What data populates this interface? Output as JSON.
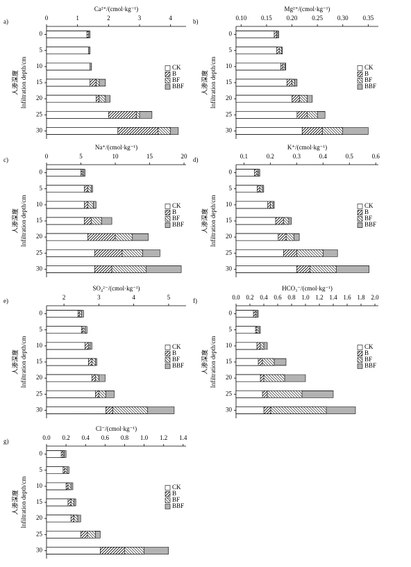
{
  "chart_data": [
    {
      "type": "bar",
      "orientation": "horizontal",
      "label": "a)",
      "title": "Ca²⁺/(cmol·kg⁻¹)",
      "ylabel": [
        "人渗深度",
        "Infiltration depth/cm"
      ],
      "categories": [
        "0",
        "5",
        "10",
        "15",
        "20",
        "25",
        "30"
      ],
      "xlim": [
        0,
        4.5
      ],
      "xticks": [
        0,
        1,
        2,
        3,
        4
      ],
      "series": [
        {
          "name": "CK",
          "pattern": "none",
          "values": [
            1.3,
            1.35,
            1.4,
            1.4,
            1.6,
            2.0,
            2.3
          ]
        },
        {
          "name": "B",
          "pattern": "diagonal",
          "values": [
            1.35,
            1.4,
            1.45,
            1.6,
            1.7,
            2.9,
            3.6
          ]
        },
        {
          "name": "BF",
          "pattern": "back-diagonal",
          "values": [
            1.4,
            1.4,
            1.45,
            1.7,
            1.9,
            3.0,
            4.0
          ]
        },
        {
          "name": "BBF",
          "pattern": "horizontal",
          "values": [
            1.4,
            1.4,
            1.45,
            1.9,
            2.05,
            3.4,
            4.25
          ]
        }
      ]
    },
    {
      "type": "bar",
      "orientation": "horizontal",
      "label": "b)",
      "title": "Mg²⁺/(cmol·kg⁻¹)",
      "ylabel": [
        "人渗深度",
        "Infiltration depth/cm"
      ],
      "categories": [
        "0",
        "5",
        "10",
        "15",
        "20",
        "25",
        "30"
      ],
      "xlim": [
        0.09,
        0.37
      ],
      "xticks": [
        {
          "value": 0.1,
          "label": "0.10"
        },
        0.15,
        {
          "value": 0.2,
          "label": "0.20"
        },
        0.25,
        {
          "value": 0.3,
          "label": "0.30"
        },
        0.35
      ],
      "series": [
        {
          "name": "CK",
          "pattern": "none",
          "values": [
            0.165,
            0.17,
            0.178,
            0.19,
            0.2,
            0.21,
            0.22
          ]
        },
        {
          "name": "B",
          "pattern": "diagonal",
          "values": [
            0.17,
            0.175,
            0.182,
            0.2,
            0.215,
            0.23,
            0.26
          ]
        },
        {
          "name": "BF",
          "pattern": "back-diagonal",
          "values": [
            0.172,
            0.18,
            0.186,
            0.205,
            0.23,
            0.25,
            0.3
          ]
        },
        {
          "name": "BBF",
          "pattern": "horizontal",
          "values": [
            0.174,
            0.181,
            0.188,
            0.21,
            0.24,
            0.265,
            0.35
          ]
        }
      ]
    },
    {
      "type": "bar",
      "orientation": "horizontal",
      "label": "c)",
      "title": "Na⁺/(cmol·kg⁻¹)",
      "ylabel": [
        "人渗深度",
        "Infiltration depth/cm"
      ],
      "categories": [
        "0",
        "5",
        "10",
        "15",
        "20",
        "25",
        "30"
      ],
      "xlim": [
        0,
        20.3
      ],
      "xticks": [
        0,
        5,
        10,
        15,
        20
      ],
      "series": [
        {
          "name": "CK",
          "pattern": "none",
          "values": [
            5,
            5.5,
            5.5,
            5.5,
            6,
            7,
            7
          ]
        },
        {
          "name": "B",
          "pattern": "diagonal",
          "values": [
            5.2,
            6,
            6,
            6.5,
            10,
            11,
            9.5
          ]
        },
        {
          "name": "BF",
          "pattern": "back-diagonal",
          "values": [
            5.4,
            6.5,
            6.8,
            8,
            12.5,
            14,
            14.5
          ]
        },
        {
          "name": "BBF",
          "pattern": "horizontal",
          "values": [
            5.6,
            6.7,
            7.2,
            9.5,
            14.8,
            16.5,
            19.6
          ]
        }
      ]
    },
    {
      "type": "bar",
      "orientation": "horizontal",
      "label": "d)",
      "title": "K⁺/(cmol·kg⁻¹)",
      "ylabel": [
        "人渗深度",
        "Infiltration depth/cm"
      ],
      "categories": [
        "0",
        "5",
        "10",
        "15",
        "20",
        "25",
        "30"
      ],
      "xlim": [
        0.07,
        0.61
      ],
      "xticks": [
        0.1,
        0.2,
        0.3,
        0.4,
        0.5,
        0.6
      ],
      "series": [
        {
          "name": "CK",
          "pattern": "none",
          "values": [
            0.14,
            0.15,
            0.19,
            0.22,
            0.23,
            0.25,
            0.3
          ]
        },
        {
          "name": "B",
          "pattern": "diagonal",
          "values": [
            0.15,
            0.16,
            0.2,
            0.25,
            0.26,
            0.3,
            0.35
          ]
        },
        {
          "name": "BF",
          "pattern": "back-diagonal",
          "values": [
            0.155,
            0.17,
            0.21,
            0.27,
            0.29,
            0.4,
            0.45
          ]
        },
        {
          "name": "BBF",
          "pattern": "horizontal",
          "values": [
            0.16,
            0.175,
            0.215,
            0.28,
            0.31,
            0.455,
            0.575
          ]
        }
      ]
    },
    {
      "type": "bar",
      "orientation": "horizontal",
      "label": "e)",
      "title": "SO₄²⁻/(cmol·kg⁻¹)",
      "ylabel": [
        "人渗深度",
        "Infiltration depth/cm"
      ],
      "categories": [
        "0",
        "5",
        "10",
        "15",
        "20",
        "25",
        "30"
      ],
      "xlim": [
        1.5,
        5.5
      ],
      "xticks": [
        2,
        3,
        4,
        5
      ],
      "series": [
        {
          "name": "CK",
          "pattern": "none",
          "values": [
            2.4,
            2.5,
            2.6,
            2.7,
            2.8,
            2.9,
            3.2
          ]
        },
        {
          "name": "B",
          "pattern": "diagonal",
          "values": [
            2.45,
            2.55,
            2.7,
            2.8,
            2.9,
            3.0,
            3.4
          ]
        },
        {
          "name": "BF",
          "pattern": "back-diagonal",
          "values": [
            2.5,
            2.6,
            2.75,
            2.9,
            3.0,
            3.2,
            4.4
          ]
        },
        {
          "name": "BBF",
          "pattern": "horizontal",
          "values": [
            2.56,
            2.66,
            2.8,
            2.94,
            3.18,
            3.44,
            5.16
          ]
        }
      ]
    },
    {
      "type": "bar",
      "orientation": "horizontal",
      "label": "f)",
      "title": "HCO₃⁻/(cmol·kg⁻¹)",
      "ylabel": [
        "人渗深度",
        "Infiltration depth/cm"
      ],
      "categories": [
        "0",
        "5",
        "10",
        "15",
        "20",
        "25",
        "30"
      ],
      "xlim": [
        0,
        2.05
      ],
      "xticks": [
        {
          "value": 0,
          "label": "0.0"
        },
        0.2,
        0.4,
        0.6,
        0.8,
        {
          "value": 1,
          "label": "1.0"
        },
        1.2,
        1.4,
        1.6,
        1.8,
        {
          "value": 2,
          "label": "2.0"
        }
      ],
      "series": [
        {
          "name": "CK",
          "pattern": "none",
          "values": [
            0.25,
            0.28,
            0.3,
            0.32,
            0.35,
            0.38,
            0.4
          ]
        },
        {
          "name": "B",
          "pattern": "diagonal",
          "values": [
            0.28,
            0.3,
            0.35,
            0.38,
            0.4,
            0.45,
            0.5
          ]
        },
        {
          "name": "BF",
          "pattern": "back-diagonal",
          "values": [
            0.3,
            0.33,
            0.4,
            0.55,
            0.7,
            0.95,
            1.3
          ]
        },
        {
          "name": "BBF",
          "pattern": "horizontal",
          "values": [
            0.32,
            0.35,
            0.45,
            0.72,
            1.0,
            1.4,
            1.72
          ]
        }
      ]
    },
    {
      "type": "bar",
      "orientation": "horizontal",
      "label": "g)",
      "title": "Cl⁻/(cmol·kg⁻¹)",
      "ylabel": [
        "人渗深度",
        "Infiltration depth/cm"
      ],
      "categories": [
        "0",
        "5",
        "10",
        "15",
        "20",
        "25",
        "30"
      ],
      "xlim": [
        0,
        1.43
      ],
      "xticks": [
        {
          "value": 0,
          "label": "0.0"
        },
        0.2,
        0.4,
        0.6,
        0.8,
        {
          "value": 1,
          "label": "1.0"
        },
        1.2,
        1.4
      ],
      "series": [
        {
          "name": "CK",
          "pattern": "none",
          "values": [
            0.15,
            0.17,
            0.2,
            0.22,
            0.25,
            0.35,
            0.55
          ]
        },
        {
          "name": "B",
          "pattern": "diagonal",
          "values": [
            0.17,
            0.19,
            0.22,
            0.25,
            0.28,
            0.42,
            0.8
          ]
        },
        {
          "name": "BF",
          "pattern": "back-diagonal",
          "values": [
            0.18,
            0.21,
            0.25,
            0.28,
            0.32,
            0.5,
            1.0
          ]
        },
        {
          "name": "BBF",
          "pattern": "horizontal",
          "values": [
            0.2,
            0.23,
            0.27,
            0.3,
            0.35,
            0.55,
            1.25
          ]
        }
      ]
    }
  ]
}
